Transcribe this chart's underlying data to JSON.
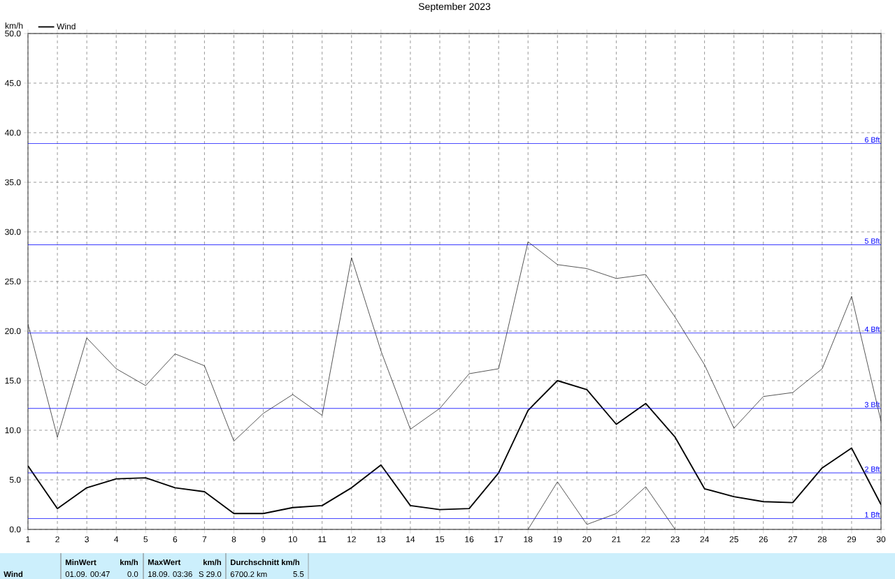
{
  "chart_data": {
    "type": "line",
    "title": "September 2023",
    "ylabel": "km/h",
    "x": [
      1,
      2,
      3,
      4,
      5,
      6,
      7,
      8,
      9,
      10,
      11,
      12,
      13,
      14,
      15,
      16,
      17,
      18,
      19,
      20,
      21,
      22,
      23,
      24,
      25,
      26,
      27,
      28,
      29,
      30
    ],
    "xlim": [
      1,
      30
    ],
    "xticks": [
      1,
      2,
      3,
      4,
      5,
      6,
      7,
      8,
      9,
      10,
      11,
      12,
      13,
      14,
      15,
      16,
      17,
      18,
      19,
      20,
      21,
      22,
      23,
      24,
      25,
      26,
      27,
      28,
      29,
      30
    ],
    "ylim": [
      0,
      50
    ],
    "yticks": [
      {
        "value": 0,
        "label": "0.0"
      },
      {
        "value": 5,
        "label": "5.0"
      },
      {
        "value": 10,
        "label": "10.0"
      },
      {
        "value": 15,
        "label": "15.0"
      },
      {
        "value": 20,
        "label": "20.0"
      },
      {
        "value": 25,
        "label": "25.0"
      },
      {
        "value": 30,
        "label": "30.0"
      },
      {
        "value": 35,
        "label": "35.0"
      },
      {
        "value": 40,
        "label": "40.0"
      },
      {
        "value": 45,
        "label": "45.0"
      },
      {
        "value": 50,
        "label": "50.0"
      }
    ],
    "grid": true,
    "legend": "top left",
    "marker": "none",
    "line_style": "solid",
    "series": [
      {
        "color": "#000000",
        "values": [
          20.7,
          9.3,
          19.3,
          16.2,
          14.5,
          17.7,
          16.5,
          8.9,
          11.7,
          13.6,
          11.5,
          27.4,
          18.0,
          10.1,
          12.2,
          15.7,
          16.2,
          29.0,
          26.7,
          26.3,
          25.3,
          25.7,
          21.4,
          16.6,
          10.2,
          13.4,
          13.8,
          16.2,
          23.5,
          10.9
        ]
      },
      {
        "name": "Wind",
        "color": "#000000",
        "values": [
          6.4,
          2.1,
          4.2,
          5.1,
          5.2,
          4.2,
          3.8,
          1.6,
          1.6,
          2.2,
          2.4,
          4.2,
          6.5,
          2.4,
          2.0,
          2.1,
          5.7,
          12.0,
          15.0,
          14.1,
          10.6,
          12.7,
          9.3,
          4.1,
          3.3,
          2.8,
          2.7,
          6.2,
          8.2,
          2.5
        ]
      },
      {
        "color": "#000000",
        "values": [
          null,
          null,
          null,
          null,
          null,
          null,
          null,
          null,
          null,
          null,
          null,
          null,
          null,
          null,
          null,
          null,
          null,
          0.0,
          4.8,
          0.5,
          1.6,
          4.3,
          0.0,
          null,
          null,
          null,
          null,
          null,
          null,
          null
        ]
      }
    ],
    "ref_lines": [
      {
        "axis": "y",
        "value": 1.1,
        "label": "1 Bft",
        "color": "#0000ff"
      },
      {
        "axis": "y",
        "value": 5.7,
        "label": "2 Bft",
        "color": "#0000ff"
      },
      {
        "axis": "y",
        "value": 12.2,
        "label": "3 Bft",
        "color": "#0000ff"
      },
      {
        "axis": "y",
        "value": 19.8,
        "label": "4 Bft",
        "color": "#0000ff"
      },
      {
        "axis": "y",
        "value": 28.7,
        "label": "5 Bft",
        "color": "#0000ff"
      },
      {
        "axis": "y",
        "value": 38.9,
        "label": "6 Bft",
        "color": "#0000ff"
      }
    ],
    "annotations": [
      "Wind",
      "MinWert",
      "km/h",
      "01.09.  00:47",
      "0.0",
      "MaxWert",
      "km/h",
      "18.09.  03:36",
      "S 29.0",
      "Durchschnitt km/h",
      "6700.2 km",
      "5.5"
    ]
  }
}
